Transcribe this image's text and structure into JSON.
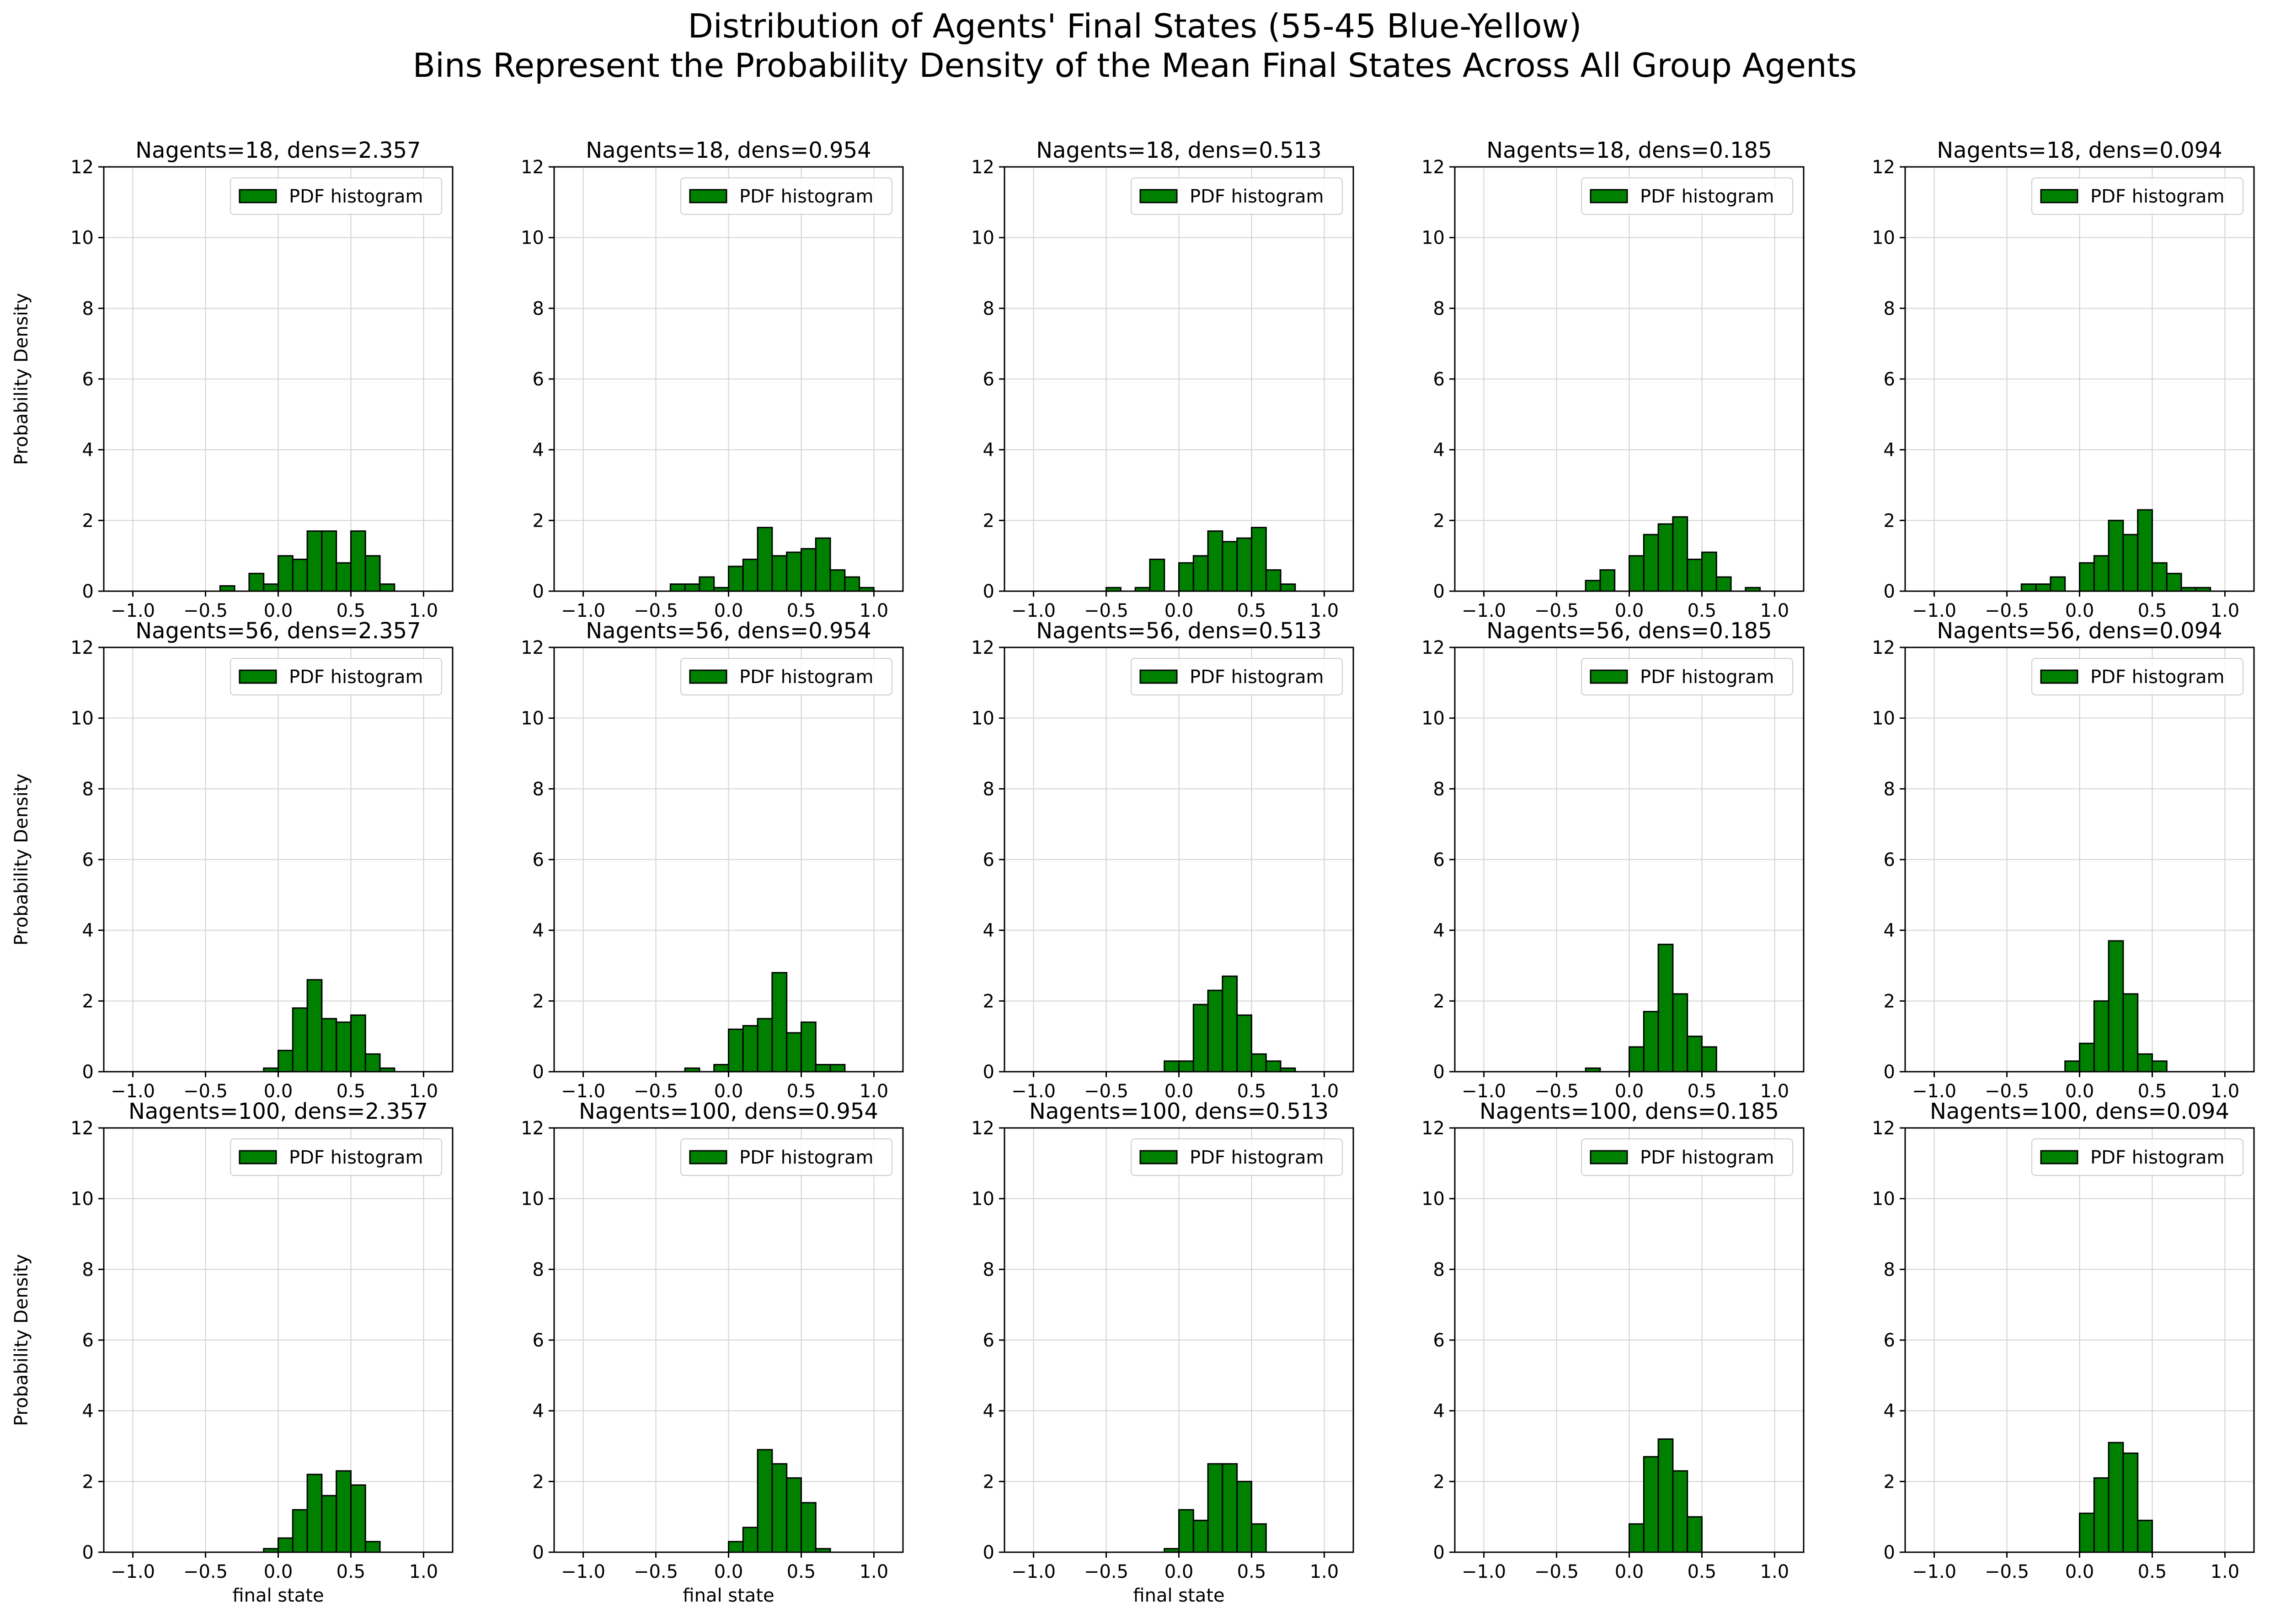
{
  "figure": {
    "title_line1": "Distribution of Agents' Final States (55-45 Blue-Yellow)",
    "title_line2": "Bins Represent the Probability Density of the Mean Final States Across All Group Agents"
  },
  "colors": {
    "bar_fill": "#008000",
    "bar_edge": "#000000",
    "grid": "#d3d3d3"
  },
  "chart_data": [
    {
      "type": "bar",
      "title": "Nagents=18, dens=2.357",
      "xlabel": "",
      "ylabel": "Probability Density",
      "legend": "PDF histogram",
      "legend_position": "upper right",
      "grid": true,
      "xlim": [
        -1.2,
        1.2
      ],
      "ylim": [
        0,
        12
      ],
      "xticks": [
        -1.0,
        -0.5,
        0.0,
        0.5,
        1.0
      ],
      "yticks": [
        0,
        2,
        4,
        6,
        8,
        10,
        12
      ],
      "bin_width": 0.1,
      "bins_left": [
        -0.4,
        -0.3,
        -0.2,
        -0.1,
        0.0,
        0.1,
        0.2,
        0.3,
        0.4,
        0.5,
        0.6,
        0.7,
        0.8
      ],
      "values": [
        0.15,
        0.0,
        0.5,
        0.2,
        1.0,
        0.9,
        1.7,
        1.7,
        0.8,
        1.7,
        1.0,
        0.2,
        0.0
      ]
    },
    {
      "type": "bar",
      "title": "Nagents=18, dens=0.954",
      "xlabel": "",
      "ylabel": "",
      "legend": "PDF histogram",
      "legend_position": "upper right",
      "grid": true,
      "xlim": [
        -1.2,
        1.2
      ],
      "ylim": [
        0,
        12
      ],
      "xticks": [
        -1.0,
        -0.5,
        0.0,
        0.5,
        1.0
      ],
      "yticks": [
        0,
        2,
        4,
        6,
        8,
        10,
        12
      ],
      "bin_width": 0.1,
      "bins_left": [
        -0.4,
        -0.3,
        -0.2,
        -0.1,
        0.0,
        0.1,
        0.2,
        0.3,
        0.4,
        0.5,
        0.6,
        0.7,
        0.8,
        0.9
      ],
      "values": [
        0.2,
        0.2,
        0.4,
        0.1,
        0.7,
        0.9,
        1.8,
        1.0,
        1.1,
        1.2,
        1.5,
        0.6,
        0.4,
        0.1
      ]
    },
    {
      "type": "bar",
      "title": "Nagents=18, dens=0.513",
      "xlabel": "",
      "ylabel": "",
      "legend": "PDF histogram",
      "legend_position": "upper right",
      "grid": true,
      "xlim": [
        -1.2,
        1.2
      ],
      "ylim": [
        0,
        12
      ],
      "xticks": [
        -1.0,
        -0.5,
        0.0,
        0.5,
        1.0
      ],
      "yticks": [
        0,
        2,
        4,
        6,
        8,
        10,
        12
      ],
      "bin_width": 0.1,
      "bins_left": [
        -0.5,
        -0.4,
        -0.3,
        -0.2,
        -0.1,
        0.0,
        0.1,
        0.2,
        0.3,
        0.4,
        0.5,
        0.6,
        0.7
      ],
      "values": [
        0.1,
        0.0,
        0.1,
        0.9,
        0.0,
        0.8,
        1.0,
        1.7,
        1.4,
        1.5,
        1.8,
        0.6,
        0.2
      ]
    },
    {
      "type": "bar",
      "title": "Nagents=18, dens=0.185",
      "xlabel": "",
      "ylabel": "",
      "legend": "PDF histogram",
      "legend_position": "upper right",
      "grid": true,
      "xlim": [
        -1.2,
        1.2
      ],
      "ylim": [
        0,
        12
      ],
      "xticks": [
        -1.0,
        -0.5,
        0.0,
        0.5,
        1.0
      ],
      "yticks": [
        0,
        2,
        4,
        6,
        8,
        10,
        12
      ],
      "bin_width": 0.1,
      "bins_left": [
        -0.3,
        -0.2,
        -0.1,
        0.0,
        0.1,
        0.2,
        0.3,
        0.4,
        0.5,
        0.6,
        0.7,
        0.8
      ],
      "values": [
        0.3,
        0.6,
        0.0,
        1.0,
        1.6,
        1.9,
        2.1,
        0.9,
        1.1,
        0.4,
        0.0,
        0.1
      ]
    },
    {
      "type": "bar",
      "title": "Nagents=18, dens=0.094",
      "xlabel": "",
      "ylabel": "",
      "legend": "PDF histogram",
      "legend_position": "upper right",
      "grid": true,
      "xlim": [
        -1.2,
        1.2
      ],
      "ylim": [
        0,
        12
      ],
      "xticks": [
        -1.0,
        -0.5,
        0.0,
        0.5,
        1.0
      ],
      "yticks": [
        0,
        2,
        4,
        6,
        8,
        10,
        12
      ],
      "bin_width": 0.1,
      "bins_left": [
        -0.4,
        -0.3,
        -0.2,
        -0.1,
        0.0,
        0.1,
        0.2,
        0.3,
        0.4,
        0.5,
        0.6,
        0.7,
        0.8
      ],
      "values": [
        0.2,
        0.2,
        0.4,
        0.0,
        0.8,
        1.0,
        2.0,
        1.6,
        2.3,
        0.8,
        0.5,
        0.1,
        0.1
      ]
    },
    {
      "type": "bar",
      "title": "Nagents=56, dens=2.357",
      "xlabel": "",
      "ylabel": "Probability Density",
      "legend": "PDF histogram",
      "legend_position": "upper right",
      "grid": true,
      "xlim": [
        -1.2,
        1.2
      ],
      "ylim": [
        0,
        12
      ],
      "xticks": [
        -1.0,
        -0.5,
        0.0,
        0.5,
        1.0
      ],
      "yticks": [
        0,
        2,
        4,
        6,
        8,
        10,
        12
      ],
      "bin_width": 0.1,
      "bins_left": [
        -0.1,
        0.0,
        0.1,
        0.2,
        0.3,
        0.4,
        0.5,
        0.6,
        0.7
      ],
      "values": [
        0.1,
        0.6,
        1.8,
        2.6,
        1.5,
        1.4,
        1.6,
        0.5,
        0.1
      ]
    },
    {
      "type": "bar",
      "title": "Nagents=56, dens=0.954",
      "xlabel": "",
      "ylabel": "",
      "legend": "PDF histogram",
      "legend_position": "upper right",
      "grid": true,
      "xlim": [
        -1.2,
        1.2
      ],
      "ylim": [
        0,
        12
      ],
      "xticks": [
        -1.0,
        -0.5,
        0.0,
        0.5,
        1.0
      ],
      "yticks": [
        0,
        2,
        4,
        6,
        8,
        10,
        12
      ],
      "bin_width": 0.1,
      "bins_left": [
        -0.3,
        -0.2,
        -0.1,
        0.0,
        0.1,
        0.2,
        0.3,
        0.4,
        0.5,
        0.6,
        0.7
      ],
      "values": [
        0.1,
        0.0,
        0.2,
        1.2,
        1.3,
        1.5,
        2.8,
        1.1,
        1.4,
        0.2,
        0.2
      ]
    },
    {
      "type": "bar",
      "title": "Nagents=56, dens=0.513",
      "xlabel": "",
      "ylabel": "",
      "legend": "PDF histogram",
      "legend_position": "upper right",
      "grid": true,
      "xlim": [
        -1.2,
        1.2
      ],
      "ylim": [
        0,
        12
      ],
      "xticks": [
        -1.0,
        -0.5,
        0.0,
        0.5,
        1.0
      ],
      "yticks": [
        0,
        2,
        4,
        6,
        8,
        10,
        12
      ],
      "bin_width": 0.1,
      "bins_left": [
        -0.1,
        0.0,
        0.1,
        0.2,
        0.3,
        0.4,
        0.5,
        0.6,
        0.7
      ],
      "values": [
        0.3,
        0.3,
        1.9,
        2.3,
        2.7,
        1.6,
        0.5,
        0.3,
        0.1
      ]
    },
    {
      "type": "bar",
      "title": "Nagents=56, dens=0.185",
      "xlabel": "",
      "ylabel": "",
      "legend": "PDF histogram",
      "legend_position": "upper right",
      "grid": true,
      "xlim": [
        -1.2,
        1.2
      ],
      "ylim": [
        0,
        12
      ],
      "xticks": [
        -1.0,
        -0.5,
        0.0,
        0.5,
        1.0
      ],
      "yticks": [
        0,
        2,
        4,
        6,
        8,
        10,
        12
      ],
      "bin_width": 0.1,
      "bins_left": [
        -0.3,
        -0.2,
        -0.1,
        0.0,
        0.1,
        0.2,
        0.3,
        0.4,
        0.5
      ],
      "values": [
        0.1,
        0.0,
        0.0,
        0.7,
        1.7,
        3.6,
        2.2,
        1.0,
        0.7
      ]
    },
    {
      "type": "bar",
      "title": "Nagents=56, dens=0.094",
      "xlabel": "",
      "ylabel": "",
      "legend": "PDF histogram",
      "legend_position": "upper right",
      "grid": true,
      "xlim": [
        -1.2,
        1.2
      ],
      "ylim": [
        0,
        12
      ],
      "xticks": [
        -1.0,
        -0.5,
        0.0,
        0.5,
        1.0
      ],
      "yticks": [
        0,
        2,
        4,
        6,
        8,
        10,
        12
      ],
      "bin_width": 0.1,
      "bins_left": [
        -0.1,
        0.0,
        0.1,
        0.2,
        0.3,
        0.4,
        0.5
      ],
      "values": [
        0.3,
        0.8,
        2.0,
        3.7,
        2.2,
        0.5,
        0.3
      ]
    },
    {
      "type": "bar",
      "title": "Nagents=100, dens=2.357",
      "xlabel": "final state",
      "ylabel": "Probability  Density",
      "legend": "PDF histogram",
      "legend_position": "upper right",
      "grid": true,
      "xlim": [
        -1.2,
        1.2
      ],
      "ylim": [
        0,
        12
      ],
      "xticks": [
        -1.0,
        -0.5,
        0.0,
        0.5,
        1.0
      ],
      "yticks": [
        0,
        2,
        4,
        6,
        8,
        10,
        12
      ],
      "bin_width": 0.1,
      "bins_left": [
        -0.1,
        0.0,
        0.1,
        0.2,
        0.3,
        0.4,
        0.5,
        0.6
      ],
      "values": [
        0.1,
        0.4,
        1.2,
        2.2,
        1.6,
        2.3,
        1.9,
        0.3
      ]
    },
    {
      "type": "bar",
      "title": "Nagents=100, dens=0.954",
      "xlabel": "final state",
      "ylabel": "",
      "legend": "PDF histogram",
      "legend_position": "upper right",
      "grid": true,
      "xlim": [
        -1.2,
        1.2
      ],
      "ylim": [
        0,
        12
      ],
      "xticks": [
        -1.0,
        -0.5,
        0.0,
        0.5,
        1.0
      ],
      "yticks": [
        0,
        2,
        4,
        6,
        8,
        10,
        12
      ],
      "bin_width": 0.1,
      "bins_left": [
        0.0,
        0.1,
        0.2,
        0.3,
        0.4,
        0.5,
        0.6
      ],
      "values": [
        0.3,
        0.7,
        2.9,
        2.5,
        2.1,
        1.4,
        0.1
      ]
    },
    {
      "type": "bar",
      "title": "Nagents=100, dens=0.513",
      "xlabel": "final state",
      "ylabel": "",
      "legend": "PDF histogram",
      "legend_position": "upper right",
      "grid": true,
      "xlim": [
        -1.2,
        1.2
      ],
      "ylim": [
        0,
        12
      ],
      "xticks": [
        -1.0,
        -0.5,
        0.0,
        0.5,
        1.0
      ],
      "yticks": [
        0,
        2,
        4,
        6,
        8,
        10,
        12
      ],
      "bin_width": 0.1,
      "bins_left": [
        -0.1,
        0.0,
        0.1,
        0.2,
        0.3,
        0.4,
        0.5
      ],
      "values": [
        0.1,
        1.2,
        0.9,
        2.5,
        2.5,
        2.0,
        0.8
      ]
    },
    {
      "type": "bar",
      "title": "Nagents=100, dens=0.185",
      "xlabel": "",
      "ylabel": "",
      "legend": "PDF histogram",
      "legend_position": "upper right",
      "grid": true,
      "xlim": [
        -1.2,
        1.2
      ],
      "ylim": [
        0,
        12
      ],
      "xticks": [
        -1.0,
        -0.5,
        0.0,
        0.5,
        1.0
      ],
      "yticks": [
        0,
        2,
        4,
        6,
        8,
        10,
        12
      ],
      "bin_width": 0.1,
      "bins_left": [
        0.0,
        0.1,
        0.2,
        0.3,
        0.4
      ],
      "values": [
        0.8,
        2.7,
        3.2,
        2.3,
        1.0
      ]
    },
    {
      "type": "bar",
      "title": "Nagents=100, dens=0.094",
      "xlabel": "",
      "ylabel": "",
      "legend": "PDF histogram",
      "legend_position": "upper right",
      "grid": true,
      "xlim": [
        -1.2,
        1.2
      ],
      "ylim": [
        0,
        12
      ],
      "xticks": [
        -1.0,
        -0.5,
        0.0,
        0.5,
        1.0
      ],
      "yticks": [
        0,
        2,
        4,
        6,
        8,
        10,
        12
      ],
      "bin_width": 0.1,
      "bins_left": [
        0.0,
        0.1,
        0.2,
        0.3,
        0.4
      ],
      "values": [
        1.1,
        2.1,
        3.1,
        2.8,
        0.9
      ]
    }
  ]
}
